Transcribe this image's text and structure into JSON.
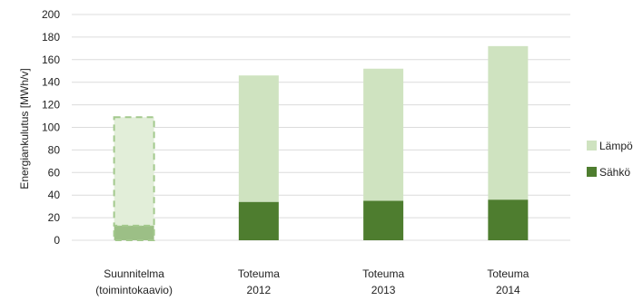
{
  "chart_data": {
    "type": "bar",
    "stacked": true,
    "categories": [
      [
        "Suunnitelma",
        "(toimintokaavio)"
      ],
      [
        "Toteuma",
        "2012"
      ],
      [
        "Toteuma",
        "2013"
      ],
      [
        "Toteuma",
        "2014"
      ]
    ],
    "series": [
      {
        "name": "Sähkö",
        "values": [
          13,
          34,
          35,
          36
        ],
        "color": "#4e7d2f",
        "planned_color": "#9cbf86"
      },
      {
        "name": "Lämpö",
        "values": [
          96,
          112,
          117,
          136
        ],
        "color": "#cfe3c0",
        "planned_color": "#e2eed9"
      }
    ],
    "planned_category_index": 0,
    "planned_border_color": "#a3c98d",
    "ylabel": "Energiankulutus [MWh/v]",
    "ylim": [
      0,
      200
    ],
    "yticks": [
      0,
      20,
      40,
      60,
      80,
      100,
      120,
      140,
      160,
      180,
      200
    ],
    "grid": true,
    "grid_color": "#dcdcdc",
    "legend_position": "right",
    "legend_order": [
      "Lämpö",
      "Sähkö"
    ]
  }
}
